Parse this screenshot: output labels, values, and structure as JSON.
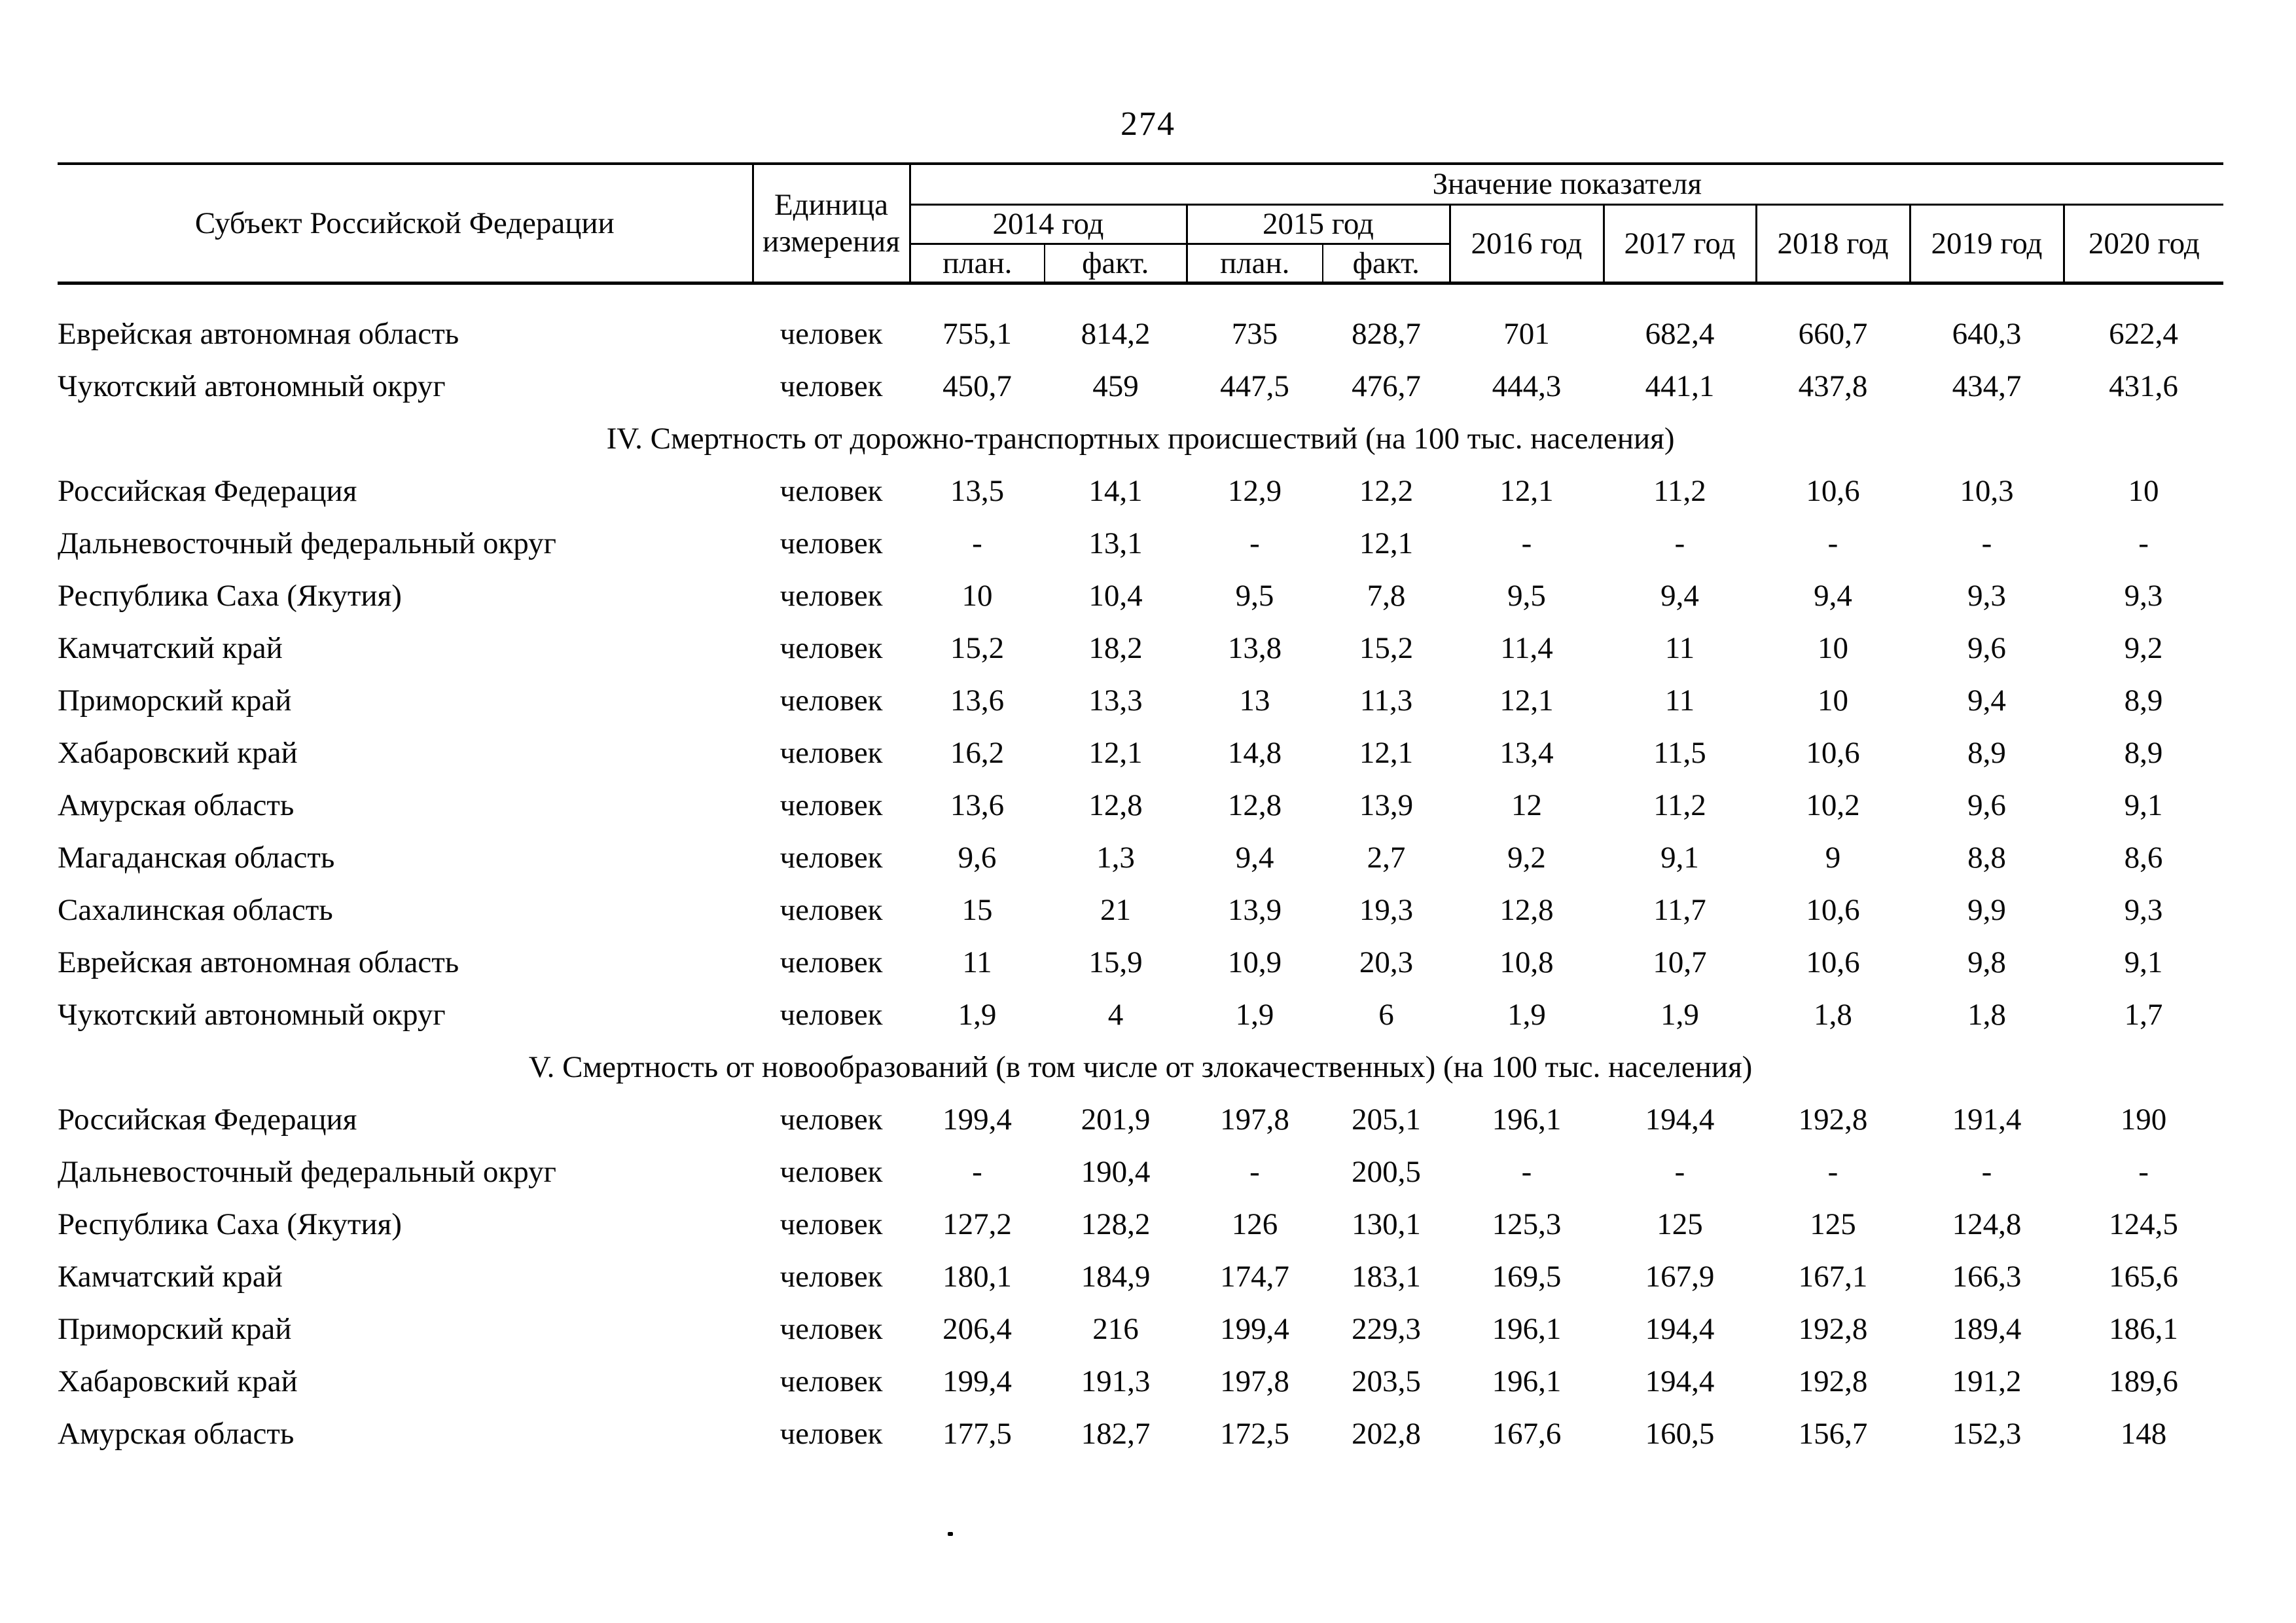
{
  "page": {
    "number": "274"
  },
  "table": {
    "header": {
      "subject": "Субъект Российской Федерации",
      "unit": "Единица измерения",
      "value": "Значение показателя",
      "year_2014": "2014 год",
      "year_2015": "2015 год",
      "year_2016": "2016 год",
      "year_2017": "2017 год",
      "year_2018": "2018 год",
      "year_2019": "2019 год",
      "year_2020": "2020 год",
      "plan": "план.",
      "fact": "факт."
    },
    "rows": [
      {
        "name": "Еврейская автономная область",
        "unit": "человек",
        "values": [
          "755,1",
          "814,2",
          "735",
          "828,7",
          "701",
          "682,4",
          "660,7",
          "640,3",
          "622,4"
        ]
      },
      {
        "name": "Чукотский автономный округ",
        "unit": "человек",
        "values": [
          "450,7",
          "459",
          "447,5",
          "476,7",
          "444,3",
          "441,1",
          "437,8",
          "434,7",
          "431,6"
        ]
      },
      {
        "section": "IV. Смертность от дорожно-транспортных происшествий (на 100 тыс. населения)"
      },
      {
        "name": "Российская Федерация",
        "unit": "человек",
        "values": [
          "13,5",
          "14,1",
          "12,9",
          "12,2",
          "12,1",
          "11,2",
          "10,6",
          "10,3",
          "10"
        ]
      },
      {
        "name": "Дальневосточный федеральный округ",
        "unit": "человек",
        "values": [
          "-",
          "13,1",
          "-",
          "12,1",
          "-",
          "-",
          "-",
          "-",
          "-"
        ]
      },
      {
        "name": "Республика Саха (Якутия)",
        "unit": "человек",
        "values": [
          "10",
          "10,4",
          "9,5",
          "7,8",
          "9,5",
          "9,4",
          "9,4",
          "9,3",
          "9,3"
        ]
      },
      {
        "name": "Камчатский край",
        "unit": "человек",
        "values": [
          "15,2",
          "18,2",
          "13,8",
          "15,2",
          "11,4",
          "11",
          "10",
          "9,6",
          "9,2"
        ]
      },
      {
        "name": "Приморский край",
        "unit": "человек",
        "values": [
          "13,6",
          "13,3",
          "13",
          "11,3",
          "12,1",
          "11",
          "10",
          "9,4",
          "8,9"
        ]
      },
      {
        "name": "Хабаровский край",
        "unit": "человек",
        "values": [
          "16,2",
          "12,1",
          "14,8",
          "12,1",
          "13,4",
          "11,5",
          "10,6",
          "8,9",
          "8,9"
        ]
      },
      {
        "name": "Амурская область",
        "unit": "человек",
        "values": [
          "13,6",
          "12,8",
          "12,8",
          "13,9",
          "12",
          "11,2",
          "10,2",
          "9,6",
          "9,1"
        ]
      },
      {
        "name": "Магаданская область",
        "unit": "человек",
        "values": [
          "9,6",
          "1,3",
          "9,4",
          "2,7",
          "9,2",
          "9,1",
          "9",
          "8,8",
          "8,6"
        ]
      },
      {
        "name": "Сахалинская область",
        "unit": "человек",
        "values": [
          "15",
          "21",
          "13,9",
          "19,3",
          "12,8",
          "11,7",
          "10,6",
          "9,9",
          "9,3"
        ]
      },
      {
        "name": "Еврейская автономная область",
        "unit": "человек",
        "values": [
          "11",
          "15,9",
          "10,9",
          "20,3",
          "10,8",
          "10,7",
          "10,6",
          "9,8",
          "9,1"
        ]
      },
      {
        "name": "Чукотский автономный округ",
        "unit": "человек",
        "values": [
          "1,9",
          "4",
          "1,9",
          "6",
          "1,9",
          "1,9",
          "1,8",
          "1,8",
          "1,7"
        ]
      },
      {
        "section": "V. Смертность от новообразований (в том числе от злокачественных) (на 100 тыс. населения)"
      },
      {
        "name": "Российская Федерация",
        "unit": "человек",
        "values": [
          "199,4",
          "201,9",
          "197,8",
          "205,1",
          "196,1",
          "194,4",
          "192,8",
          "191,4",
          "190"
        ]
      },
      {
        "name": "Дальневосточный федеральный округ",
        "unit": "человек",
        "values": [
          "-",
          "190,4",
          "-",
          "200,5",
          "-",
          "-",
          "-",
          "-",
          "-"
        ]
      },
      {
        "name": "Республика Саха (Якутия)",
        "unit": "человек",
        "values": [
          "127,2",
          "128,2",
          "126",
          "130,1",
          "125,3",
          "125",
          "125",
          "124,8",
          "124,5"
        ]
      },
      {
        "name": "Камчатский край",
        "unit": "человек",
        "values": [
          "180,1",
          "184,9",
          "174,7",
          "183,1",
          "169,5",
          "167,9",
          "167,1",
          "166,3",
          "165,6"
        ]
      },
      {
        "name": "Приморский край",
        "unit": "человек",
        "values": [
          "206,4",
          "216",
          "199,4",
          "229,3",
          "196,1",
          "194,4",
          "192,8",
          "189,4",
          "186,1"
        ]
      },
      {
        "name": "Хабаровский край",
        "unit": "человек",
        "values": [
          "199,4",
          "191,3",
          "197,8",
          "203,5",
          "196,1",
          "194,4",
          "192,8",
          "191,2",
          "189,6"
        ]
      },
      {
        "name": "Амурская область",
        "unit": "человек",
        "values": [
          "177,5",
          "182,7",
          "172,5",
          "202,8",
          "167,6",
          "160,5",
          "156,7",
          "152,3",
          "148"
        ]
      }
    ]
  }
}
